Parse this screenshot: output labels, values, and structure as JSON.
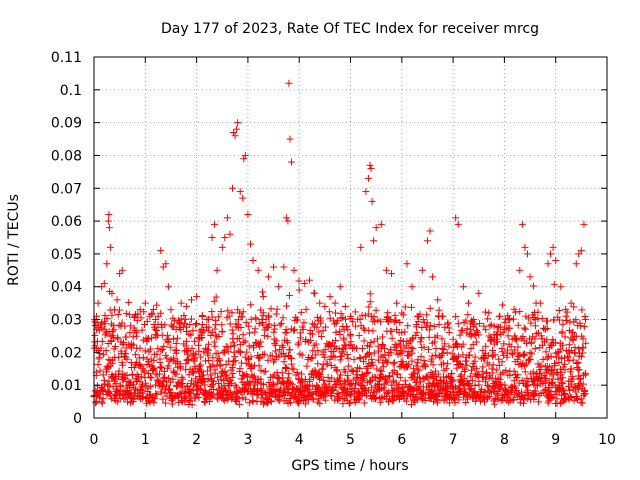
{
  "chart_data": {
    "type": "scatter",
    "title": "Day 177 of 2023, Rate Of TEC Index for receiver mrcg",
    "xlabel": "GPS time / hours",
    "ylabel": "ROTI / TECUs",
    "xlim": [
      0,
      10
    ],
    "ylim": [
      0,
      0.11
    ],
    "x_ticks": [
      0,
      1,
      2,
      3,
      4,
      5,
      6,
      7,
      8,
      9,
      10
    ],
    "x_tick_labels": [
      "0",
      "1",
      "2",
      "3",
      "4",
      "5",
      "6",
      "7",
      "8",
      "9",
      "10"
    ],
    "y_ticks": [
      0,
      0.01,
      0.02,
      0.03,
      0.04,
      0.05,
      0.06,
      0.07,
      0.08,
      0.09,
      0.1,
      0.11
    ],
    "y_tick_labels": [
      "0",
      "0.01",
      "0.02",
      "0.03",
      "0.04",
      "0.05",
      "0.06",
      "0.07",
      "0.08",
      "0.09",
      "0.1",
      "0.11"
    ],
    "grid": true,
    "marker": "+",
    "color": "#ff0000",
    "data_note": "Dense ROTI scatter; approximately one point per minute per satellite from 0 to ~9.6 h, mostly 0.005-0.03 TECU with spikes up to ~0.10.",
    "series": [
      {
        "name": "ROTI",
        "points": [
          [
            0.02,
            0.022
          ],
          [
            0.05,
            0.031
          ],
          [
            0.08,
            0.035
          ],
          [
            0.1,
            0.018
          ],
          [
            0.15,
            0.04
          ],
          [
            0.2,
            0.041
          ],
          [
            0.25,
            0.047
          ],
          [
            0.28,
            0.06
          ],
          [
            0.29,
            0.062
          ],
          [
            0.3,
            0.058
          ],
          [
            0.32,
            0.052
          ],
          [
            0.35,
            0.038
          ],
          [
            0.4,
            0.033
          ],
          [
            0.45,
            0.036
          ],
          [
            0.5,
            0.044
          ],
          [
            0.55,
            0.045
          ],
          [
            0.6,
            0.028
          ],
          [
            0.7,
            0.026
          ],
          [
            0.8,
            0.031
          ],
          [
            0.9,
            0.033
          ],
          [
            1.0,
            0.035
          ],
          [
            1.05,
            0.024
          ],
          [
            1.1,
            0.021
          ],
          [
            1.2,
            0.03
          ],
          [
            1.3,
            0.051
          ],
          [
            1.35,
            0.046
          ],
          [
            1.4,
            0.047
          ],
          [
            1.45,
            0.04
          ],
          [
            1.5,
            0.033
          ],
          [
            1.6,
            0.027
          ],
          [
            1.7,
            0.035
          ],
          [
            1.8,
            0.034
          ],
          [
            1.9,
            0.036
          ],
          [
            2.0,
            0.037
          ],
          [
            2.1,
            0.027
          ],
          [
            2.2,
            0.03
          ],
          [
            2.3,
            0.055
          ],
          [
            2.35,
            0.059
          ],
          [
            2.4,
            0.045
          ],
          [
            2.5,
            0.052
          ],
          [
            2.55,
            0.055
          ],
          [
            2.6,
            0.061
          ],
          [
            2.65,
            0.056
          ],
          [
            2.7,
            0.07
          ],
          [
            2.72,
            0.087
          ],
          [
            2.75,
            0.086
          ],
          [
            2.78,
            0.088
          ],
          [
            2.8,
            0.09
          ],
          [
            2.85,
            0.069
          ],
          [
            2.9,
            0.067
          ],
          [
            2.92,
            0.079
          ],
          [
            2.95,
            0.08
          ],
          [
            3.0,
            0.062
          ],
          [
            3.05,
            0.053
          ],
          [
            3.1,
            0.048
          ],
          [
            3.2,
            0.045
          ],
          [
            3.3,
            0.037
          ],
          [
            3.4,
            0.043
          ],
          [
            3.5,
            0.046
          ],
          [
            3.6,
            0.04
          ],
          [
            3.7,
            0.046
          ],
          [
            3.75,
            0.061
          ],
          [
            3.78,
            0.06
          ],
          [
            3.8,
            0.102
          ],
          [
            3.82,
            0.085
          ],
          [
            3.85,
            0.078
          ],
          [
            3.9,
            0.045
          ],
          [
            4.0,
            0.039
          ],
          [
            4.1,
            0.041
          ],
          [
            4.2,
            0.042
          ],
          [
            4.3,
            0.038
          ],
          [
            4.4,
            0.035
          ],
          [
            4.5,
            0.034
          ],
          [
            4.6,
            0.037
          ],
          [
            4.7,
            0.035
          ],
          [
            4.8,
            0.04
          ],
          [
            4.9,
            0.034
          ],
          [
            5.0,
            0.031
          ],
          [
            5.1,
            0.028
          ],
          [
            5.2,
            0.052
          ],
          [
            5.3,
            0.069
          ],
          [
            5.35,
            0.073
          ],
          [
            5.38,
            0.077
          ],
          [
            5.4,
            0.076
          ],
          [
            5.42,
            0.066
          ],
          [
            5.45,
            0.054
          ],
          [
            5.5,
            0.058
          ],
          [
            5.6,
            0.059
          ],
          [
            5.7,
            0.045
          ],
          [
            5.8,
            0.044
          ],
          [
            5.9,
            0.035
          ],
          [
            6.0,
            0.032
          ],
          [
            6.1,
            0.047
          ],
          [
            6.2,
            0.04
          ],
          [
            6.3,
            0.031
          ],
          [
            6.4,
            0.045
          ],
          [
            6.5,
            0.054
          ],
          [
            6.55,
            0.057
          ],
          [
            6.6,
            0.043
          ],
          [
            6.7,
            0.036
          ],
          [
            6.8,
            0.031
          ],
          [
            6.9,
            0.029
          ],
          [
            7.0,
            0.024
          ],
          [
            7.05,
            0.061
          ],
          [
            7.1,
            0.059
          ],
          [
            7.2,
            0.04
          ],
          [
            7.3,
            0.035
          ],
          [
            7.4,
            0.03
          ],
          [
            7.5,
            0.038
          ],
          [
            7.6,
            0.028
          ],
          [
            7.7,
            0.025
          ],
          [
            7.8,
            0.028
          ],
          [
            7.9,
            0.031
          ],
          [
            8.0,
            0.027
          ],
          [
            8.1,
            0.03
          ],
          [
            8.2,
            0.025
          ],
          [
            8.3,
            0.045
          ],
          [
            8.35,
            0.059
          ],
          [
            8.4,
            0.052
          ],
          [
            8.45,
            0.05
          ],
          [
            8.5,
            0.043
          ],
          [
            8.6,
            0.03
          ],
          [
            8.7,
            0.035
          ],
          [
            8.8,
            0.027
          ],
          [
            8.85,
            0.047
          ],
          [
            8.9,
            0.05
          ],
          [
            8.95,
            0.052
          ],
          [
            9.0,
            0.048
          ],
          [
            9.1,
            0.04
          ],
          [
            9.2,
            0.031
          ],
          [
            9.3,
            0.035
          ],
          [
            9.4,
            0.047
          ],
          [
            9.45,
            0.05
          ],
          [
            9.5,
            0.051
          ],
          [
            9.55,
            0.059
          ],
          [
            9.58,
            0.03
          ]
        ]
      }
    ]
  }
}
